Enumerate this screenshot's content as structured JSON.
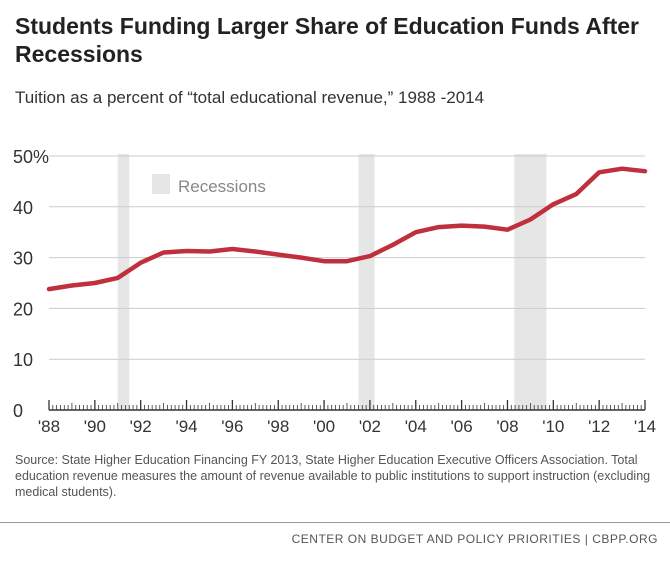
{
  "header": {
    "title": "Students Funding Larger Share of Education Funds After Recessions",
    "subtitle": "Tuition as a percent of “total educational revenue,” 1988 -2014"
  },
  "chart_data": {
    "type": "line",
    "title": "Students Funding Larger Share of Education Funds After Recessions",
    "subtitle": "Tuition as a percent of “total educational revenue,” 1988 -2014",
    "x": [
      1988,
      1989,
      1990,
      1991,
      1992,
      1993,
      1994,
      1995,
      1996,
      1997,
      1998,
      1999,
      2000,
      2001,
      2002,
      2003,
      2004,
      2005,
      2006,
      2007,
      2008,
      2009,
      2010,
      2011,
      2012,
      2013,
      2014
    ],
    "series": [
      {
        "values": [
          23.8,
          24.5,
          25.0,
          26.0,
          29.0,
          31.0,
          31.3,
          31.2,
          31.7,
          31.2,
          30.6,
          30.0,
          29.3,
          29.3,
          30.3,
          32.5,
          35.0,
          36.0,
          36.3,
          36.1,
          35.5,
          37.5,
          40.5,
          42.5,
          46.8,
          47.5,
          47.0
        ],
        "color": "#c0303c"
      }
    ],
    "recessions": [
      [
        1991.0,
        1991.5
      ],
      [
        2001.5,
        2002.2
      ],
      [
        2008.3,
        2009.7
      ]
    ],
    "legend": {
      "label": "Recessions",
      "color": "#e6e6e6",
      "placement": "top-left"
    },
    "ylim": [
      0,
      50
    ],
    "yticks": [
      0,
      10,
      20,
      30,
      40,
      50
    ],
    "ytick_labels": [
      "0",
      "10",
      "20",
      "30",
      "40",
      "50%"
    ],
    "xlim": [
      1988,
      2014
    ],
    "xtick_labels": [
      "'88",
      "'90",
      "'92",
      "'94",
      "'96",
      "'98",
      "'00",
      "'02",
      "'04",
      "'06",
      "'08",
      "'10",
      "'12",
      "'14"
    ],
    "grid": true
  },
  "source": "Source: State Higher Education Financing FY 2013, State Higher Education Executive Officers Association. Total education revenue measures the amount of revenue available to public institutions to support instruction (excluding medical students).",
  "footer": "CENTER ON BUDGET AND POLICY PRIORITIES | CBPP.ORG"
}
